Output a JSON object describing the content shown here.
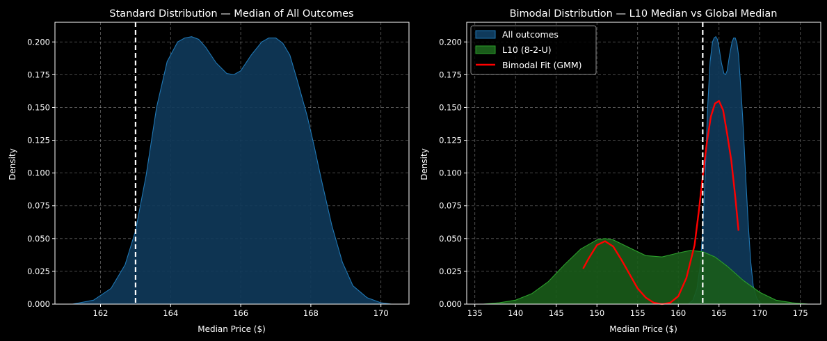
{
  "figure": {
    "background": "#000000"
  },
  "chart_data": [
    {
      "type": "area",
      "title": "Standard Distribution — Median of All Outcomes",
      "xlabel": "Median Price ($)",
      "ylabel": "Density",
      "xlim": [
        160.7,
        170.8
      ],
      "ylim": [
        0,
        0.215
      ],
      "xticks": [
        162,
        164,
        166,
        168,
        170
      ],
      "xtick_labels": [
        "162",
        "164",
        "166",
        "168",
        "170"
      ],
      "yticks": [
        0.0,
        0.025,
        0.05,
        0.075,
        0.1,
        0.125,
        0.15,
        0.175,
        0.2
      ],
      "ytick_labels": [
        "0.000",
        "0.025",
        "0.050",
        "0.075",
        "0.100",
        "0.125",
        "0.150",
        "0.175",
        "0.200"
      ],
      "grid": true,
      "series": [
        {
          "kind": "kde-fill",
          "color": "#1f77b4",
          "fill": "#0f3a5b",
          "x": [
            161.2,
            161.8,
            162.3,
            162.7,
            163.0,
            163.3,
            163.6,
            163.9,
            164.2,
            164.4,
            164.6,
            164.8,
            165.0,
            165.3,
            165.6,
            165.8,
            166.0,
            166.3,
            166.6,
            166.8,
            167.0,
            167.2,
            167.4,
            167.6,
            167.9,
            168.1,
            168.3,
            168.6,
            168.9,
            169.2,
            169.6,
            170.0,
            170.3
          ],
          "y": [
            0.0,
            0.003,
            0.012,
            0.03,
            0.056,
            0.098,
            0.15,
            0.185,
            0.2,
            0.203,
            0.204,
            0.202,
            0.196,
            0.184,
            0.176,
            0.175,
            0.178,
            0.19,
            0.2,
            0.203,
            0.203,
            0.199,
            0.19,
            0.172,
            0.143,
            0.12,
            0.095,
            0.06,
            0.032,
            0.014,
            0.005,
            0.001,
            0.0
          ]
        }
      ],
      "vlines": [
        {
          "x": 163.0,
          "style": "dashed",
          "color": "#ffffff"
        }
      ]
    },
    {
      "type": "area",
      "title": "Bimodal Distribution — L10 Median vs Global Median",
      "xlabel": "Median Price ($)",
      "ylabel": "Density",
      "xlim": [
        134.0,
        177.5
      ],
      "ylim": [
        0,
        0.215
      ],
      "xticks": [
        135,
        140,
        145,
        150,
        155,
        160,
        165,
        170,
        175
      ],
      "xtick_labels": [
        "135",
        "140",
        "145",
        "150",
        "155",
        "160",
        "165",
        "170",
        "175"
      ],
      "yticks": [
        0.0,
        0.025,
        0.05,
        0.075,
        0.1,
        0.125,
        0.15,
        0.175,
        0.2
      ],
      "ytick_labels": [
        "0.000",
        "0.025",
        "0.050",
        "0.075",
        "0.100",
        "0.125",
        "0.150",
        "0.175",
        "0.200"
      ],
      "grid": true,
      "legend": {
        "position": "top-left",
        "entries": [
          "All outcomes",
          "L10 (8-2-U)",
          "Bimodal Fit (GMM)"
        ]
      },
      "series": [
        {
          "name": "All outcomes",
          "kind": "kde-fill",
          "color": "#1f77b4",
          "fill": "#0f3a5b",
          "x": [
            161.2,
            161.8,
            162.3,
            162.7,
            163.0,
            163.3,
            163.6,
            163.9,
            164.2,
            164.4,
            164.6,
            164.8,
            165.0,
            165.3,
            165.6,
            165.8,
            166.0,
            166.3,
            166.6,
            166.8,
            167.0,
            167.2,
            167.4,
            167.6,
            167.9,
            168.1,
            168.3,
            168.6,
            168.9,
            169.2,
            169.6,
            170.0,
            170.3
          ],
          "y": [
            0.0,
            0.003,
            0.012,
            0.03,
            0.056,
            0.098,
            0.15,
            0.185,
            0.2,
            0.203,
            0.204,
            0.202,
            0.196,
            0.184,
            0.176,
            0.175,
            0.178,
            0.19,
            0.2,
            0.203,
            0.203,
            0.199,
            0.19,
            0.172,
            0.143,
            0.12,
            0.095,
            0.06,
            0.032,
            0.014,
            0.005,
            0.001,
            0.0
          ]
        },
        {
          "name": "L10 (8-2-U)",
          "kind": "kde-fill",
          "color": "#2ca02c",
          "fill": "#1a5c1a",
          "x": [
            136.0,
            138.0,
            140.0,
            142.0,
            144.0,
            146.0,
            148.0,
            150.0,
            151.0,
            152.0,
            154.0,
            156.0,
            158.0,
            160.0,
            161.5,
            163.0,
            164.5,
            166.0,
            168.0,
            170.0,
            172.0,
            174.0,
            176.0
          ],
          "y": [
            0.0,
            0.001,
            0.003,
            0.008,
            0.017,
            0.03,
            0.042,
            0.049,
            0.05,
            0.049,
            0.043,
            0.037,
            0.036,
            0.039,
            0.041,
            0.04,
            0.036,
            0.029,
            0.018,
            0.009,
            0.003,
            0.001,
            0.0
          ]
        },
        {
          "name": "Bimodal Fit (GMM)",
          "kind": "line",
          "color": "#ff0000",
          "x": [
            148.3,
            149.0,
            150.0,
            151.0,
            152.0,
            153.0,
            154.0,
            155.0,
            156.0,
            157.0,
            158.0,
            159.0,
            160.0,
            161.0,
            162.0,
            162.5,
            163.0,
            163.5,
            164.0,
            164.5,
            165.0,
            165.5,
            166.0,
            166.5,
            167.0,
            167.4
          ],
          "y": [
            0.027,
            0.035,
            0.045,
            0.048,
            0.044,
            0.034,
            0.023,
            0.012,
            0.005,
            0.001,
            0.0,
            0.001,
            0.006,
            0.02,
            0.045,
            0.07,
            0.097,
            0.123,
            0.143,
            0.153,
            0.155,
            0.148,
            0.13,
            0.11,
            0.082,
            0.056
          ]
        }
      ],
      "vlines": [
        {
          "x": 163.0,
          "style": "dashed",
          "color": "#ffffff"
        }
      ]
    }
  ]
}
